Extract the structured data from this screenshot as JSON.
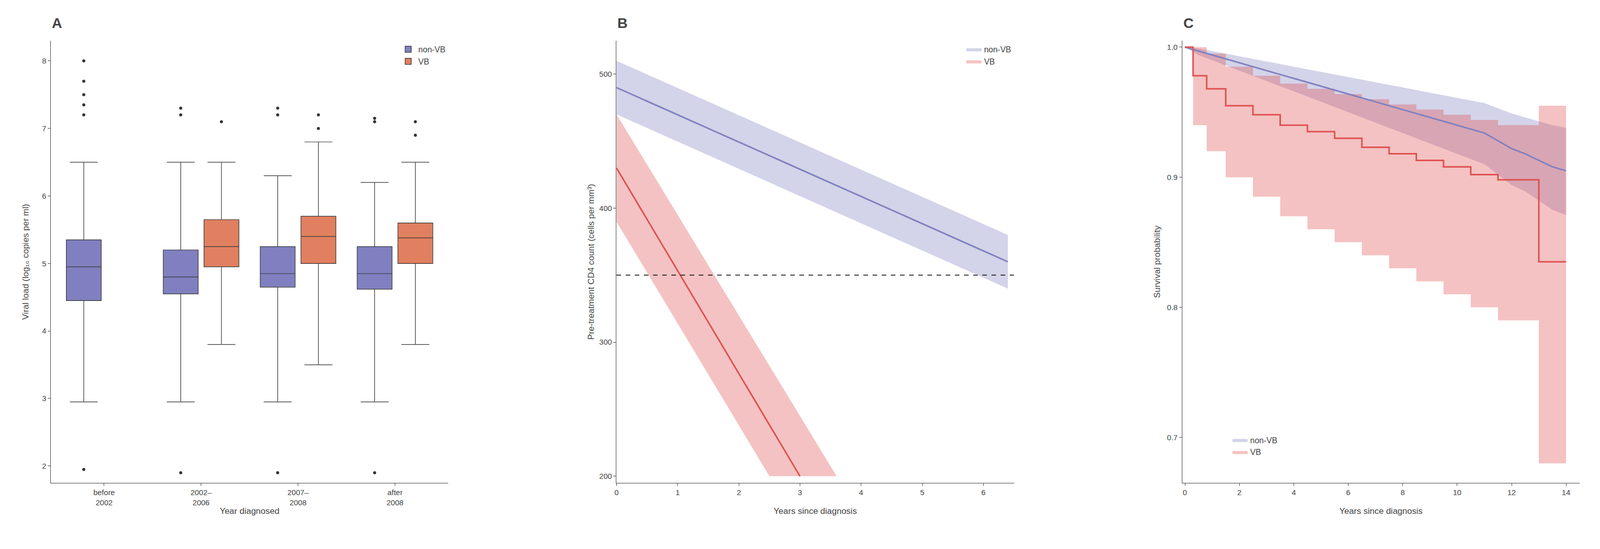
{
  "chart_data": [
    {
      "type": "box",
      "title": "A",
      "xlabel": "Year diagnosed",
      "ylabel": "Viral load (log₁₀ copies per ml)",
      "categories": [
        "before\n2002",
        "2002–\n2006",
        "2007–\n2008",
        "after\n2008"
      ],
      "series": [
        {
          "name": "non-VB",
          "color": "#8080c0",
          "median": [
            4.95,
            4.8,
            4.85,
            4.85
          ],
          "q1": [
            4.45,
            4.55,
            4.65,
            4.62
          ],
          "q3": [
            5.35,
            5.2,
            5.25,
            5.25
          ],
          "whislo": [
            2.95,
            2.95,
            2.95,
            2.95
          ],
          "whishi": [
            6.5,
            6.5,
            6.3,
            6.2
          ],
          "fliers": [
            [
              1.95,
              7.2,
              7.35,
              7.5,
              7.7,
              8.0
            ],
            [
              1.9,
              7.2,
              7.3
            ],
            [
              1.9,
              7.2,
              7.3
            ],
            [
              1.9,
              7.1,
              7.15
            ]
          ]
        },
        {
          "name": "VB",
          "color": "#e08060",
          "median": [
            null,
            5.25,
            5.4,
            5.38
          ],
          "q1": [
            null,
            4.95,
            5.0,
            5.0
          ],
          "q3": [
            null,
            5.65,
            5.7,
            5.6
          ],
          "whislo": [
            null,
            3.8,
            3.5,
            3.8
          ],
          "whishi": [
            null,
            6.5,
            6.8,
            6.5
          ],
          "fliers": [
            null,
            [
              7.1
            ],
            [
              7.0,
              7.2
            ],
            [
              6.9,
              7.1
            ]
          ]
        }
      ],
      "ylim": [
        1.75,
        8.3
      ],
      "yticks": [
        2,
        3,
        4,
        5,
        6,
        7,
        8
      ],
      "grid": false,
      "legend": "upper right"
    },
    {
      "type": "line",
      "title": "B",
      "xlabel": "Years since diagnosis",
      "ylabel": "Pre-treatment CD4 count (cells per mm³)",
      "series": [
        {
          "name": "non-VB",
          "color": "#8080c0",
          "x": [
            0,
            6.4
          ],
          "values": [
            490,
            360
          ],
          "upper": [
            510,
            380
          ],
          "lower": [
            470,
            340
          ]
        },
        {
          "name": "VB",
          "color": "#e05050",
          "x": [
            0,
            3.0
          ],
          "values": [
            430,
            200
          ],
          "upper_x": [
            0,
            3.6
          ],
          "upper": [
            470,
            200
          ],
          "lower_x": [
            0,
            2.5
          ],
          "lower": [
            390,
            200
          ]
        }
      ],
      "reference_y": 350,
      "xlim": [
        0,
        6.5
      ],
      "xticks": [
        0,
        1,
        2,
        3,
        4,
        5,
        6
      ],
      "ylim": [
        195,
        525
      ],
      "yticks": [
        200,
        300,
        400,
        500
      ],
      "grid": false,
      "legend": "upper right"
    },
    {
      "type": "line",
      "title": "C",
      "xlabel": "Years since diagnosis",
      "ylabel": "Survival probability",
      "series": [
        {
          "name": "non-VB",
          "color": "#8080c0",
          "x": [
            0,
            0.5,
            1.0,
            1.5,
            2.0,
            2.5,
            3.0,
            3.5,
            4.0,
            4.5,
            5.0,
            5.5,
            6.0,
            6.5,
            7.0,
            7.5,
            8.0,
            8.5,
            9.0,
            9.5,
            10.0,
            10.5,
            11.0,
            11.5,
            12.0,
            12.5,
            13.0,
            13.5,
            14.0
          ],
          "values": [
            1.0,
            0.997,
            0.994,
            0.991,
            0.988,
            0.985,
            0.982,
            0.979,
            0.976,
            0.973,
            0.97,
            0.967,
            0.964,
            0.961,
            0.958,
            0.955,
            0.952,
            0.949,
            0.946,
            0.943,
            0.94,
            0.937,
            0.934,
            0.928,
            0.922,
            0.918,
            0.913,
            0.908,
            0.905
          ],
          "upper": [
            1.0,
            0.999,
            0.997,
            0.995,
            0.993,
            0.991,
            0.989,
            0.987,
            0.985,
            0.983,
            0.981,
            0.979,
            0.977,
            0.975,
            0.973,
            0.971,
            0.969,
            0.967,
            0.965,
            0.963,
            0.961,
            0.959,
            0.957,
            0.953,
            0.949,
            0.946,
            0.943,
            0.94,
            0.938
          ],
          "lower": [
            1.0,
            0.994,
            0.99,
            0.986,
            0.982,
            0.978,
            0.974,
            0.97,
            0.966,
            0.962,
            0.958,
            0.954,
            0.95,
            0.946,
            0.942,
            0.938,
            0.934,
            0.93,
            0.926,
            0.922,
            0.918,
            0.914,
            0.91,
            0.902,
            0.894,
            0.889,
            0.882,
            0.875,
            0.871
          ]
        },
        {
          "name": "VB",
          "color": "#e05050",
          "type": "step",
          "x": [
            0,
            0.3,
            0.8,
            1.5,
            2.5,
            3.5,
            4.5,
            5.5,
            6.5,
            7.5,
            8.5,
            9.5,
            10.5,
            11.5,
            13.0,
            14.0
          ],
          "values": [
            1.0,
            0.978,
            0.968,
            0.955,
            0.948,
            0.94,
            0.935,
            0.93,
            0.923,
            0.918,
            0.913,
            0.908,
            0.902,
            0.898,
            0.835,
            0.835
          ],
          "upper": [
            1.0,
            1.0,
            0.995,
            0.985,
            0.978,
            0.972,
            0.968,
            0.964,
            0.96,
            0.956,
            0.952,
            0.948,
            0.944,
            0.94,
            0.955,
            0.955
          ],
          "lower": [
            1.0,
            0.94,
            0.92,
            0.9,
            0.885,
            0.87,
            0.86,
            0.85,
            0.84,
            0.83,
            0.82,
            0.81,
            0.8,
            0.79,
            0.68,
            0.68
          ]
        }
      ],
      "xlim": [
        -0.1,
        14.5
      ],
      "xticks": [
        0,
        2,
        4,
        6,
        8,
        10,
        12,
        14
      ],
      "ylim": [
        0.665,
        1.005
      ],
      "yticks": [
        0.7,
        0.8,
        0.9,
        {
          "value": 1.0,
          "label": "1.0"
        }
      ],
      "grid": false,
      "legend": "lower left"
    }
  ]
}
